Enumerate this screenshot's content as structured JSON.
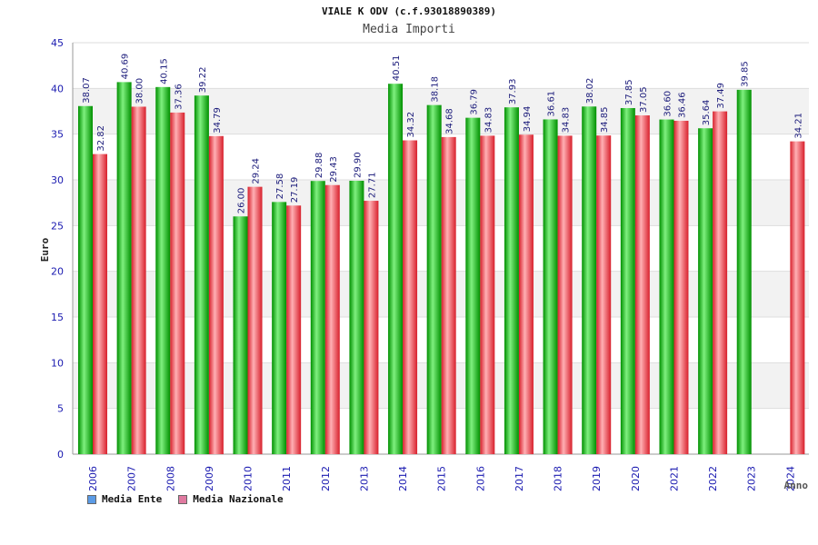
{
  "colors": {
    "ente": "#14b014",
    "nazionale": "#e8404a",
    "legend_ente": "#5b9be6",
    "legend_nazionale": "#e07aa0",
    "axis_text": "#1a1ab0"
  },
  "chart_data": {
    "type": "bar",
    "title": "VIALE K ODV (c.f.93018890389)",
    "subtitle": "Media Importi",
    "xlabel": "Anno",
    "ylabel": "Euro",
    "ylim": [
      0,
      45
    ],
    "yticks": [
      0,
      5,
      10,
      15,
      20,
      25,
      30,
      35,
      40,
      45
    ],
    "categories": [
      "2006",
      "2007",
      "2008",
      "2009",
      "2010",
      "2011",
      "2012",
      "2013",
      "2014",
      "2015",
      "2016",
      "2017",
      "2018",
      "2019",
      "2020",
      "2021",
      "2022",
      "2023",
      "2024"
    ],
    "series": [
      {
        "name": "Media Ente",
        "values": [
          38.07,
          40.69,
          40.15,
          39.22,
          26.0,
          27.58,
          29.88,
          29.9,
          40.51,
          38.18,
          36.79,
          37.93,
          36.61,
          38.02,
          37.85,
          36.6,
          35.64,
          39.85,
          null
        ],
        "labels": [
          "38.07",
          "40.69",
          "40.15",
          "39.22",
          "26.00",
          "27.58",
          "29.88",
          "29.90",
          "40.51",
          "38.18",
          "36.79",
          "37.93",
          "36.61",
          "38.02",
          "37.85",
          "36.60",
          "35.64",
          "39.85",
          null
        ]
      },
      {
        "name": "Media Nazionale",
        "values": [
          32.82,
          38.0,
          37.36,
          34.79,
          29.24,
          27.19,
          29.43,
          27.71,
          34.32,
          34.68,
          34.83,
          34.94,
          34.83,
          34.85,
          37.05,
          36.46,
          37.49,
          null,
          34.21
        ],
        "labels": [
          "32.82",
          "38.00",
          "37.36",
          "34.79",
          "29.24",
          "27.19",
          "29.43",
          "27.71",
          "34.32",
          "34.68",
          "34.83",
          "34.94",
          "34.83",
          "34.85",
          "37.05",
          "36.46",
          "37.49",
          null,
          "34.21"
        ]
      }
    ]
  }
}
